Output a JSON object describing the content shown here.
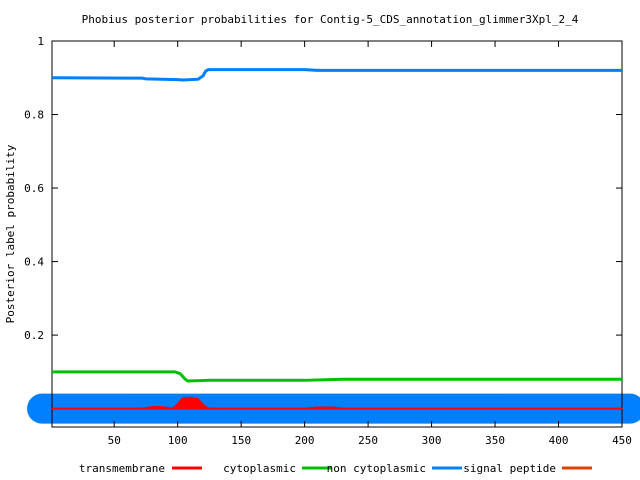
{
  "chart_data": {
    "type": "line",
    "title": "Phobius posterior probabilities for Contig-5_CDS_annotation_glimmer3Xpl_2_4",
    "xlabel": "",
    "ylabel": "Posterior label probability",
    "xlim": [
      1,
      450
    ],
    "ylim": [
      -0.05,
      1
    ],
    "x_ticks": [
      50,
      100,
      150,
      200,
      250,
      300,
      350,
      400,
      450
    ],
    "y_ticks": [
      0.2,
      0.4,
      0.6,
      0.8,
      1
    ],
    "y_tick_labels": [
      "0.2",
      "0.4",
      "0.6",
      "0.8",
      "1"
    ],
    "grid": false,
    "legend_position": "bottom",
    "series": [
      {
        "name": "transmembrane",
        "color": "#ff0000",
        "points": [
          [
            1,
            0
          ],
          [
            72,
            0
          ],
          [
            80,
            0.004
          ],
          [
            88,
            0.004
          ],
          [
            96,
            0
          ],
          [
            100,
            0.012
          ],
          [
            104,
            0.028
          ],
          [
            110,
            0.03
          ],
          [
            116,
            0.026
          ],
          [
            120,
            0.01
          ],
          [
            124,
            0
          ],
          [
            200,
            0
          ],
          [
            210,
            0.003
          ],
          [
            222,
            0.003
          ],
          [
            230,
            0
          ],
          [
            450,
            0
          ]
        ]
      },
      {
        "name": "cytoplasmic",
        "color": "#00c000",
        "points": [
          [
            1,
            0.1
          ],
          [
            75,
            0.1
          ],
          [
            95,
            0.1
          ],
          [
            98,
            0.1
          ],
          [
            102,
            0.095
          ],
          [
            106,
            0.08
          ],
          [
            108,
            0.075
          ],
          [
            124,
            0.077
          ],
          [
            200,
            0.077
          ],
          [
            230,
            0.08
          ],
          [
            450,
            0.08
          ]
        ]
      },
      {
        "name": "non cytoplasmic",
        "color": "#0080ff",
        "points": [
          [
            1,
            0.9
          ],
          [
            72,
            0.899
          ],
          [
            75,
            0.897
          ],
          [
            100,
            0.895
          ],
          [
            104,
            0.894
          ],
          [
            116,
            0.896
          ],
          [
            120,
            0.905
          ],
          [
            122,
            0.918
          ],
          [
            124,
            0.922
          ],
          [
            200,
            0.922
          ],
          [
            210,
            0.92
          ],
          [
            450,
            0.92
          ]
        ]
      },
      {
        "name": "signal peptide",
        "color": "#e04000",
        "points": [
          [
            1,
            0
          ],
          [
            450,
            0
          ]
        ]
      }
    ]
  }
}
